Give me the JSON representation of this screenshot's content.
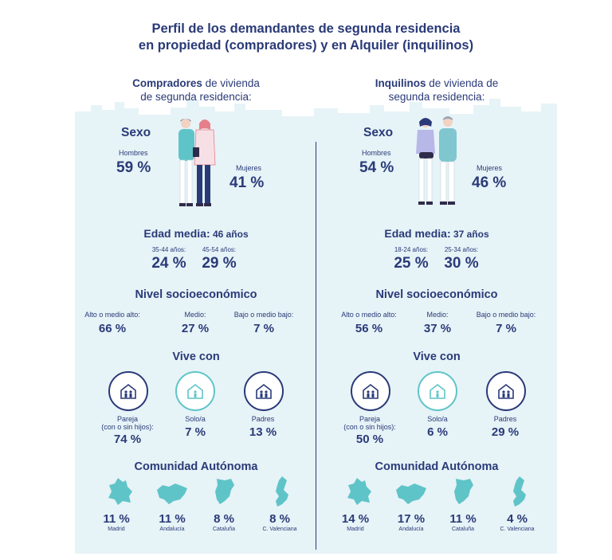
{
  "title_line1": "Perfil de los demandantes de segunda residencia",
  "title_line2": "en propiedad (compradores) y en Alquiler (inquilinos)",
  "colors": {
    "navy": "#2a3a78",
    "teal": "#5fc4c8",
    "panel": "#e6f3f7"
  },
  "left": {
    "header_bold": "Compradores",
    "header_rest_1": " de vivienda",
    "header_line2": "de segunda residencia:",
    "sexo_label": "Sexo",
    "hombres_label": "Hombres",
    "hombres_value": "59 %",
    "mujeres_label": "Mujeres",
    "mujeres_value": "41 %",
    "edad_label": "Edad media:",
    "edad_value": " 46 años",
    "edad_groups": [
      {
        "label": "35-44 años:",
        "value": "24 %"
      },
      {
        "label": "45-54 años:",
        "value": "29 %"
      }
    ],
    "nivel_label": "Nivel socioeconómico",
    "nivel": [
      {
        "label": "Alto o medio alto:",
        "value": "66 %"
      },
      {
        "label": "Medio:",
        "value": "27 %"
      },
      {
        "label": "Bajo o medio bajo:",
        "value": "7 %"
      }
    ],
    "vive_label": "Vive con",
    "vive": [
      {
        "label_1": "Pareja",
        "label_2": "(con o sin hijos):",
        "value": "74 %",
        "icon": "family-house-icon"
      },
      {
        "label_1": "Solo/a",
        "label_2": "",
        "value": "7 %",
        "icon": "single-house-icon"
      },
      {
        "label_1": "Padres",
        "label_2": "",
        "value": "13 %",
        "icon": "parents-house-icon"
      }
    ],
    "comunidad_label": "Comunidad Autónoma",
    "comunidades": [
      {
        "value": "11 %",
        "name": "Madrid",
        "icon": "madrid-map-icon"
      },
      {
        "value": "11 %",
        "name": "Andalucía",
        "icon": "andalucia-map-icon"
      },
      {
        "value": "8 %",
        "name": "Cataluña",
        "icon": "cataluna-map-icon"
      },
      {
        "value": "8 %",
        "name": "C. Valenciana",
        "icon": "valenciana-map-icon"
      }
    ]
  },
  "right": {
    "header_bold": "Inquilinos",
    "header_rest_1": " de vivienda de",
    "header_line2": "segunda residencia:",
    "sexo_label": "Sexo",
    "hombres_label": "Hombres",
    "hombres_value": "54 %",
    "mujeres_label": "Mujeres",
    "mujeres_value": "46 %",
    "edad_label": "Edad media:",
    "edad_value": " 37 años",
    "edad_groups": [
      {
        "label": "18-24 años:",
        "value": "25 %"
      },
      {
        "label": "25-34 años:",
        "value": "30 %"
      }
    ],
    "nivel_label": "Nivel socioeconómico",
    "nivel": [
      {
        "label": "Alto o medio alto:",
        "value": "56 %"
      },
      {
        "label": "Medio:",
        "value": "37 %"
      },
      {
        "label": "Bajo o medio bajo:",
        "value": "7 %"
      }
    ],
    "vive_label": "Vive con",
    "vive": [
      {
        "label_1": "Pareja",
        "label_2": "(con o sin hijos):",
        "value": "50 %",
        "icon": "family-house-icon"
      },
      {
        "label_1": "Solo/a",
        "label_2": "",
        "value": "6 %",
        "icon": "single-house-icon"
      },
      {
        "label_1": "Padres",
        "label_2": "",
        "value": "29 %",
        "icon": "parents-house-icon"
      }
    ],
    "comunidad_label": "Comunidad Autónoma",
    "comunidades": [
      {
        "value": "14 %",
        "name": "Madrid",
        "icon": "madrid-map-icon"
      },
      {
        "value": "17 %",
        "name": "Andalucía",
        "icon": "andalucia-map-icon"
      },
      {
        "value": "11 %",
        "name": "Cataluña",
        "icon": "cataluna-map-icon"
      },
      {
        "value": "4 %",
        "name": "C. Valenciana",
        "icon": "valenciana-map-icon"
      }
    ]
  }
}
